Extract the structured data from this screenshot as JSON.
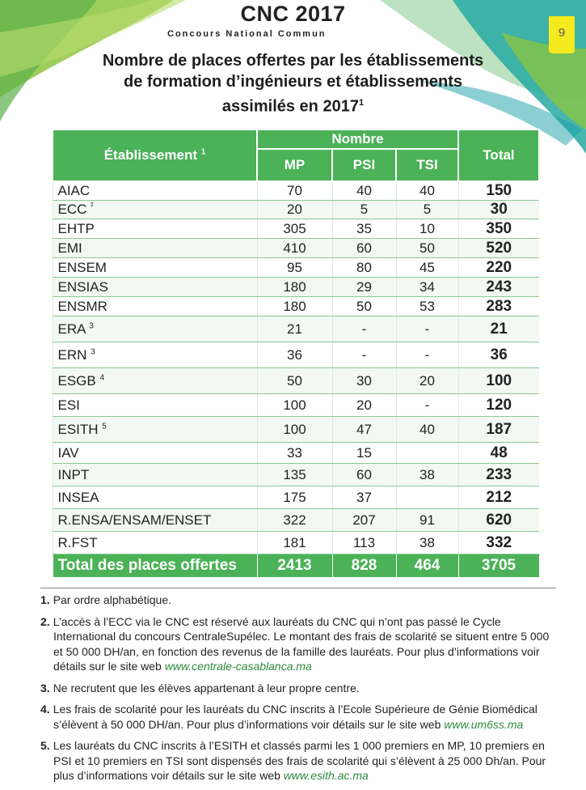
{
  "header": {
    "title": "CNC 2017",
    "subtitle": "Concours National Commun",
    "page_number": "9"
  },
  "doc_title": {
    "line1": "Nombre de places offertes par les établissements",
    "line2": "de formation d’ingénieurs et établissements",
    "line3": "assimilés en 2017",
    "sup": "1"
  },
  "table": {
    "col_establishment": "Établissement",
    "col_establishment_sup": "1",
    "group_header": "Nombre",
    "col_mp": "MP",
    "col_psi": "PSI",
    "col_tsi": "TSI",
    "col_total": "Total",
    "rows": [
      {
        "name": "AIAC",
        "sup": "",
        "mp": "70",
        "psi": "40",
        "tsi": "40",
        "total": "150"
      },
      {
        "name": "ECC",
        "sup": "²",
        "mp": "20",
        "psi": "5",
        "tsi": "5",
        "total": "30"
      },
      {
        "name": "EHTP",
        "sup": "",
        "mp": "305",
        "psi": "35",
        "tsi": "10",
        "total": "350"
      },
      {
        "name": "EMI",
        "sup": "",
        "mp": "410",
        "psi": "60",
        "tsi": "50",
        "total": "520"
      },
      {
        "name": "ENSEM",
        "sup": "",
        "mp": "95",
        "psi": "80",
        "tsi": "45",
        "total": "220"
      },
      {
        "name": "ENSIAS",
        "sup": "",
        "mp": "180",
        "psi": "29",
        "tsi": "34",
        "total": "243"
      },
      {
        "name": "ENSMR",
        "sup": "",
        "mp": "180",
        "psi": "50",
        "tsi": "53",
        "total": "283"
      },
      {
        "name": "ERA",
        "sup": "3",
        "mp": "21",
        "psi": "-",
        "tsi": "-",
        "total": "21"
      },
      {
        "name": "ERN",
        "sup": "3",
        "mp": "36",
        "psi": "-",
        "tsi": "-",
        "total": "36"
      },
      {
        "name": "ESGB",
        "sup": "4",
        "mp": "50",
        "psi": "30",
        "tsi": "20",
        "total": "100"
      },
      {
        "name": "ESI",
        "sup": "",
        "mp": "100",
        "psi": "20",
        "tsi": "-",
        "total": "120"
      },
      {
        "name": "ESITH",
        "sup": "5",
        "mp": "100",
        "psi": "47",
        "tsi": "40",
        "total": "187"
      },
      {
        "name": "IAV",
        "sup": "",
        "mp": "33",
        "psi": "15",
        "tsi": "",
        "total": "48"
      },
      {
        "name": "INPT",
        "sup": "",
        "mp": "135",
        "psi": "60",
        "tsi": "38",
        "total": "233"
      },
      {
        "name": "INSEA",
        "sup": "",
        "mp": "175",
        "psi": "37",
        "tsi": "",
        "total": "212"
      },
      {
        "name": "R.ENSA/ENSAM/ENSET",
        "sup": "",
        "mp": "322",
        "psi": "207",
        "tsi": "91",
        "total": "620"
      },
      {
        "name": "R.FST",
        "sup": "",
        "mp": "181",
        "psi": "113",
        "tsi": "38",
        "total": "332"
      }
    ],
    "footer": {
      "label": "Total des places offertes",
      "mp": "2413",
      "psi": "828",
      "tsi": "464",
      "total": "3705"
    }
  },
  "notes": {
    "n1": {
      "num": "1.",
      "text": "Par ordre alphabétique."
    },
    "n2": {
      "num": "2.",
      "text": "L’accès à l’ECC via le CNC est réservé aux lauréats du CNC qui n’ont pas passé le Cycle International du concours CentraleSupélec. Le montant des frais de scolarité se situent entre 5 000 et 50 000 DH/an, en fonction des revenus de la famille des lauréats. Pour plus d’informations voir détails sur le site web ",
      "link": "www.centrale-casablanca.ma"
    },
    "n3": {
      "num": "3.",
      "text": "Ne recrutent que les élèves appartenant à leur propre centre."
    },
    "n4": {
      "num": "4.",
      "text": "Les frais de scolarité pour les lauréats du CNC inscrits à l’Ecole Supérieure de Génie Biomédical s’élèvent à 50 000 DH/an. Pour plus d’informations voir détails sur le site web ",
      "link": "www.um6ss.ma"
    },
    "n5": {
      "num": "5.",
      "text": "Les lauréats du CNC inscrits à l’ESITH et classés parmi les 1 000 premiers en MP, 10 premiers en PSI et 10 premiers en TSI sont dispensés des frais de scolarité qui s’élèvent à 25 000 Dh/an. Pour plus d’informations voir détails sur le site web ",
      "link": "www.esith.ac.ma"
    }
  },
  "colors": {
    "table_green": "#4bb257",
    "link_green": "#2c8a3c",
    "badge_yellow": "#f4ea1d"
  }
}
